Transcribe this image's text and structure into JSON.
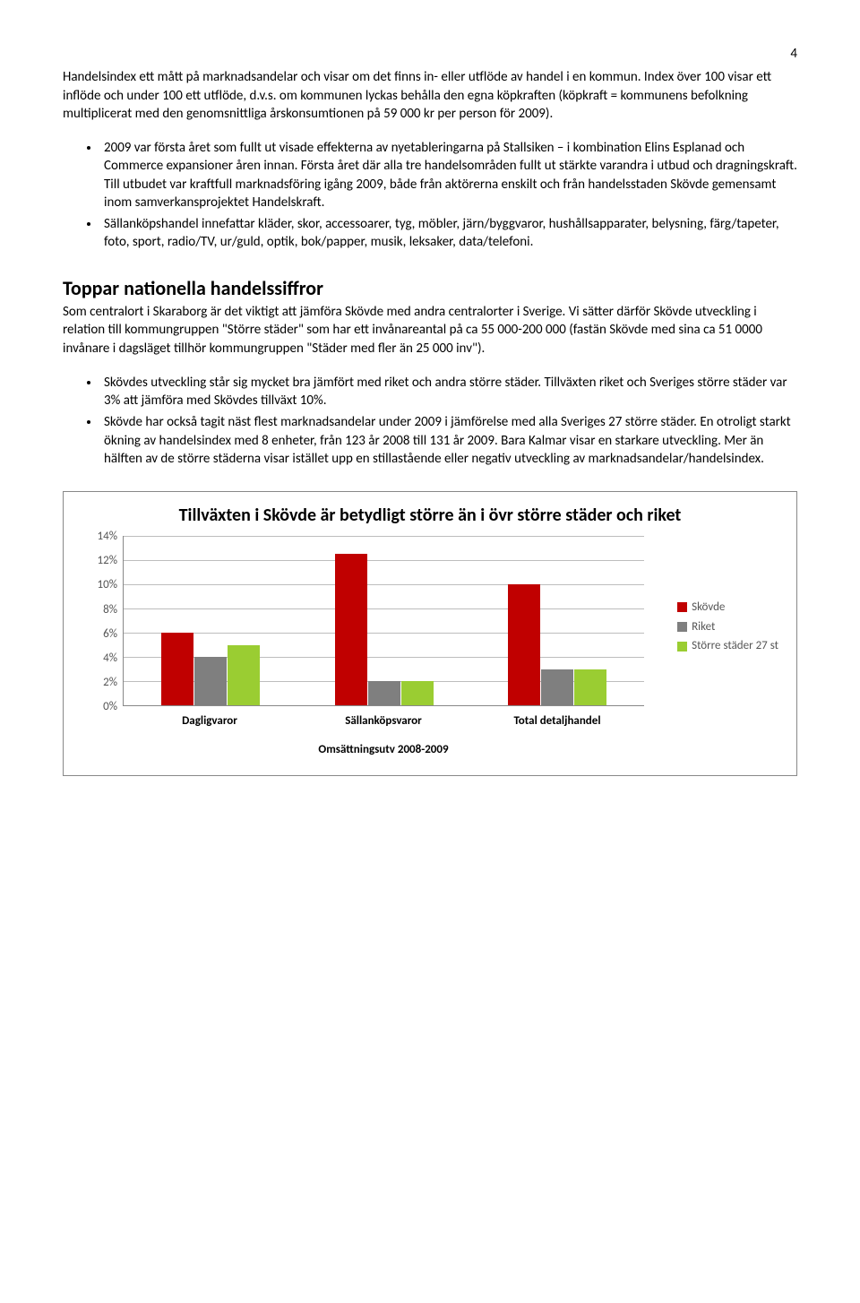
{
  "page_number": "4",
  "intro_para": "Handelsindex ett mått på marknadsandelar och visar om det finns in- eller utflöde av handel i en kommun. Index över 100 visar ett inflöde och under 100 ett utflöde, d.v.s. om kommunen lyckas behålla den egna köpkraften (köpkraft = kommunens befolkning multiplicerat med den genomsnittliga årskonsumtionen på 59 000 kr per person för 2009).",
  "bullets_a": [
    "2009 var första året som fullt ut visade effekterna av nyetableringarna på Stallsiken – i kombination Elins Esplanad och Commerce expansioner åren innan. Första året där alla tre handelsområden fullt ut stärkte varandra i utbud och dragningskraft. Till utbudet var kraftfull marknadsföring igång 2009, både från aktörerna enskilt och från handelsstaden Skövde gemensamt inom samverkansprojektet Handelskraft.",
    "Sällanköpshandel innefattar kläder, skor, accessoarer, tyg, möbler, järn/byggvaror, hushållsapparater, belysning, färg/tapeter, foto, sport, radio/TV, ur/guld, optik, bok/papper, musik, leksaker, data/telefoni."
  ],
  "section_heading": "Toppar nationella handelssiffror",
  "section_para": "Som centralort i Skaraborg är det viktigt att jämföra Skövde med andra centralorter i Sverige. Vi sätter därför Skövde utveckling i relation till kommungruppen \"Större städer\" som har ett invånareantal på ca 55 000-200 000 (fastän Skövde med sina ca 51 0000 invånare i dagsläget tillhör kommungruppen \"Städer med fler än 25 000 inv\").",
  "bullets_b": [
    "Skövdes utveckling står sig mycket bra jämfört med riket och andra större städer. Tillväxten riket och Sveriges större städer var 3% att jämföra med Skövdes tillväxt 10%.",
    "Skövde har också tagit näst flest marknadsandelar under 2009 i jämförelse med alla Sveriges 27 större städer. En otroligt starkt ökning av handelsindex med 8 enheter, från 123 år 2008 till 131 år 2009. Bara Kalmar visar en starkare utveckling. Mer än hälften av de större städerna visar istället upp en stillastående eller negativ utveckling av marknadsandelar/handelsindex."
  ],
  "chart": {
    "title": "Tillväxten i Skövde är betydligt större än i övr större städer och riket",
    "y_ticks": [
      "14%",
      "12%",
      "10%",
      "8%",
      "6%",
      "4%",
      "2%",
      "0%"
    ],
    "y_max": 14,
    "categories": [
      "Dagligvaror",
      "Sällanköpsvaror",
      "Total detaljhandel"
    ],
    "series": [
      {
        "name": "Skövde",
        "color": "#c00000",
        "values": [
          6,
          12.5,
          10
        ]
      },
      {
        "name": "Riket",
        "color": "#7f7f7f",
        "values": [
          4,
          2,
          3
        ]
      },
      {
        "name": "Större städer 27 st",
        "color": "#9acd32",
        "values": [
          5,
          2,
          3
        ]
      }
    ],
    "x_axis_title": "Omsättningsutv 2008-2009",
    "grid_color": "#bdbdbd",
    "background": "#ffffff"
  }
}
